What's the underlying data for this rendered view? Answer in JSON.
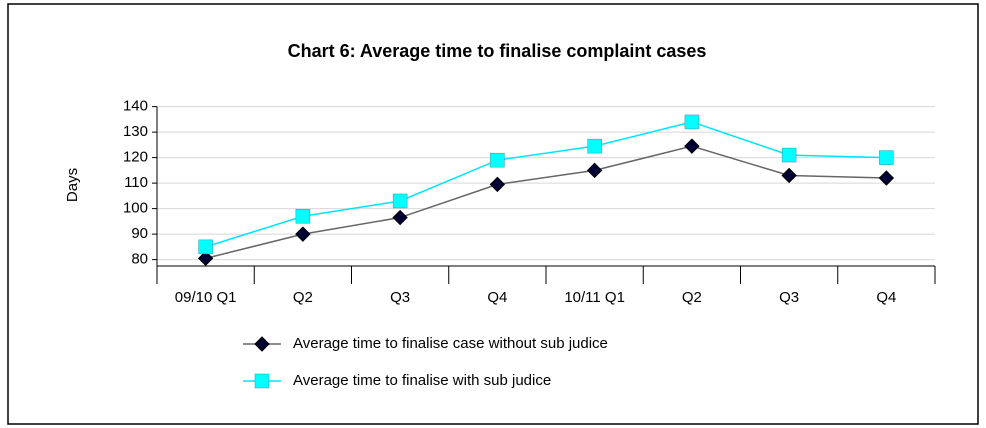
{
  "chart_data": {
    "type": "line",
    "title": "Chart 6:  Average time to finalise complaint cases",
    "y_label": "Days",
    "categories": [
      "09/10 Q1",
      "Q2",
      "Q3",
      "Q4",
      "10/11 Q1",
      "Q2",
      "Q3",
      "Q4"
    ],
    "series": [
      {
        "name": "Average time to finalise case without sub judice",
        "color": "#000033",
        "line_color": "#666666",
        "marker": "diamond",
        "values": [
          80.5,
          90,
          96.5,
          109.5,
          115,
          124.5,
          113,
          112
        ]
      },
      {
        "name": "Average time to finalise with sub judice",
        "color": "#00ffff",
        "line_color": "#00e5ff",
        "marker": "square",
        "values": [
          85,
          97,
          103,
          119,
          124.5,
          134,
          121,
          120
        ]
      }
    ],
    "ylim": [
      77.5,
      140
    ],
    "yticks": [
      80,
      90,
      100,
      110,
      120,
      130,
      140
    ],
    "grid": true,
    "legend": "bottom"
  }
}
